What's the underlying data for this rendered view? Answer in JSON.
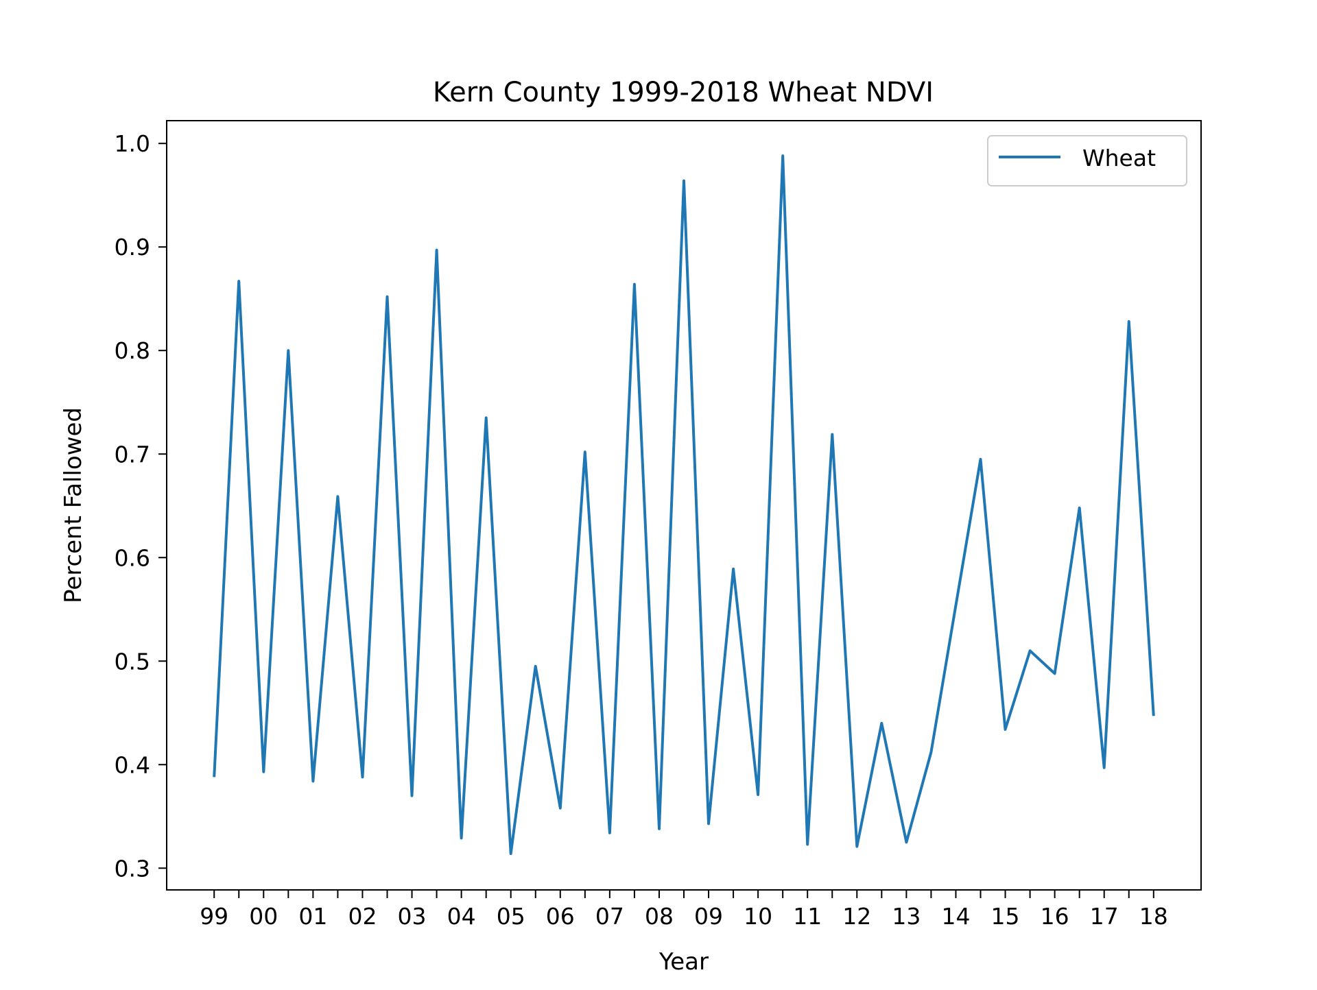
{
  "chart_data": {
    "type": "line",
    "title": "Kern County 1999-2018 Wheat NDVI",
    "xlabel": "Year",
    "ylabel": "Percent Fallowed",
    "x_tick_labels": [
      "99",
      "00",
      "01",
      "02",
      "03",
      "04",
      "05",
      "06",
      "07",
      "08",
      "09",
      "10",
      "11",
      "12",
      "13",
      "14",
      "15",
      "16",
      "17",
      "18"
    ],
    "y_ticks": [
      0.3,
      0.4,
      0.5,
      0.6,
      0.7,
      0.8,
      0.9,
      1.0
    ],
    "y_tick_labels": [
      "0.3",
      "0.4",
      "0.5",
      "0.6",
      "0.7",
      "0.8",
      "0.9",
      "1.0"
    ],
    "ylim": [
      0.279,
      1.022
    ],
    "x": [
      1999,
      1999.5,
      2000,
      2000.5,
      2001,
      2001.5,
      2002,
      2002.5,
      2003,
      2003.5,
      2004,
      2004.5,
      2005,
      2005.5,
      2006,
      2006.5,
      2007,
      2007.5,
      2008,
      2008.5,
      2009,
      2009.5,
      2010,
      2010.5,
      2011,
      2011.5,
      2012,
      2012.5,
      2013,
      2013.5,
      2014,
      2014.5,
      2015,
      2015.5,
      2016,
      2016.5,
      2017,
      2017.5,
      2018
    ],
    "xlim": [
      1998.04,
      2018.96
    ],
    "series": [
      {
        "name": "Wheat",
        "color": "#1f77b4",
        "values": [
          0.388,
          0.867,
          0.393,
          0.8,
          0.384,
          0.659,
          0.388,
          0.852,
          0.37,
          0.897,
          0.329,
          0.735,
          0.314,
          0.495,
          0.358,
          0.702,
          0.334,
          0.864,
          0.338,
          0.964,
          0.343,
          0.589,
          0.371,
          0.988,
          0.323,
          0.719,
          0.321,
          0.44,
          0.325,
          0.412,
          0.554,
          0.695,
          0.434,
          0.51,
          0.488,
          0.648,
          0.397,
          0.828,
          0.447
        ]
      }
    ],
    "legend_position": "top-right",
    "grid": false
  }
}
